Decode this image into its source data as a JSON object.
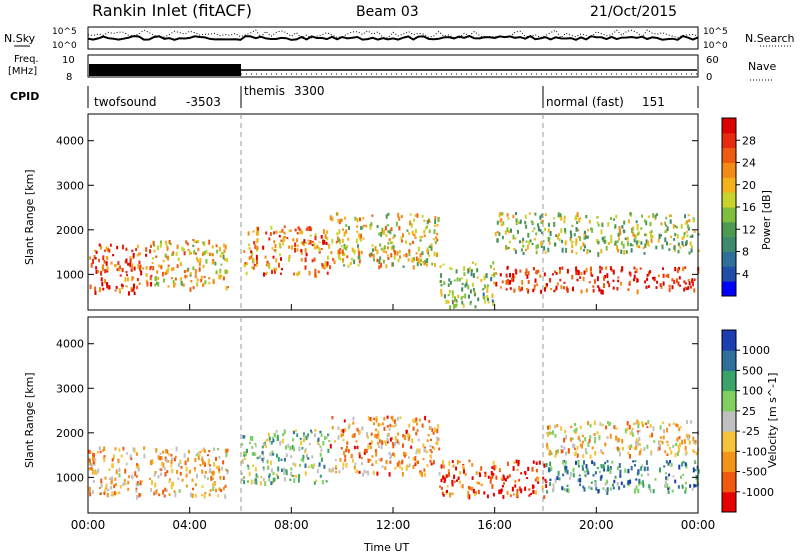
{
  "header": {
    "station": "Rankin Inlet (fitACF)",
    "beam": "Beam 03",
    "date": "21/Oct/2015"
  },
  "strips": {
    "nsky_label": "N.Sky",
    "nsky_ticks": [
      "10^5",
      "10^0"
    ],
    "nsearch_label": "N.Search",
    "freq_label": "Freq.",
    "freq_unit": "[MHz]",
    "freq_ticks": [
      "10",
      "8"
    ],
    "nave_label": "Nave",
    "nave_ticks": [
      "60",
      "0"
    ],
    "cpid_label": "CPID",
    "cpid_segments": [
      {
        "name": "twofsound",
        "id": "-3503",
        "start_hour": 0.0
      },
      {
        "name": "themis",
        "id": "3300",
        "start_hour": 6.0
      },
      {
        "name": "normal (fast)",
        "id": "151",
        "start_hour": 18.0
      }
    ]
  },
  "chart_data": [
    {
      "type": "heatmap",
      "name": "power",
      "xlabel": "",
      "ylabel": "Slant Range [km]",
      "xlim_hours": [
        0,
        24
      ],
      "ylim_km": [
        200,
        4600
      ],
      "yticks": [
        "1000",
        "2000",
        "3000",
        "4000"
      ],
      "colorbar_label": "Power [dB]",
      "colorbar_ticks": [
        "4",
        "8",
        "12",
        "16",
        "20",
        "24",
        "28"
      ],
      "colorbar_colors": [
        "#0000ff",
        "#1f4ea8",
        "#2f6f9a",
        "#3e8a6c",
        "#4e9a52",
        "#7fbf3f",
        "#c9d42b",
        "#f3b21a",
        "#f28a16",
        "#ef5a12",
        "#e82a10",
        "#dd0000"
      ],
      "regions": [
        {
          "x": [
            0.0,
            2.5
          ],
          "y": [
            600,
            1700
          ],
          "level": 0.82
        },
        {
          "x": [
            2.5,
            5.5
          ],
          "y": [
            700,
            1800
          ],
          "level": 0.62
        },
        {
          "x": [
            6.0,
            9.5
          ],
          "y": [
            1000,
            2100
          ],
          "level": 0.72
        },
        {
          "x": [
            9.5,
            13.8
          ],
          "y": [
            1200,
            2400
          ],
          "level": 0.58
        },
        {
          "x": [
            13.8,
            16.0
          ],
          "y": [
            300,
            1300
          ],
          "level": 0.45
        },
        {
          "x": [
            16.0,
            24.0
          ],
          "y": [
            650,
            1200
          ],
          "level": 0.9
        },
        {
          "x": [
            16.0,
            24.0
          ],
          "y": [
            1500,
            2400
          ],
          "level": 0.48
        }
      ]
    },
    {
      "type": "heatmap",
      "name": "velocity",
      "xlabel": "Time UT",
      "ylabel": "Slant Range [km]",
      "xlim_hours": [
        0,
        24
      ],
      "ylim_km": [
        200,
        4600
      ],
      "xticks": [
        "00:00",
        "04:00",
        "08:00",
        "12:00",
        "16:00",
        "20:00",
        "00:00"
      ],
      "yticks": [
        "1000",
        "2000",
        "3000",
        "4000"
      ],
      "colorbar_label": "Velocity [m s^-1]",
      "colorbar_ticks": [
        "-1000",
        "-500",
        "-100",
        "-25",
        "25",
        "100",
        "500",
        "1000"
      ],
      "colorbar_colors": [
        "#e80000",
        "#f05a10",
        "#f39318",
        "#f5c43a",
        "#c0c0c0",
        "#7fd060",
        "#3aa36a",
        "#2f6f9a",
        "#1b3fb0"
      ],
      "regions": [
        {
          "x": [
            0.0,
            5.5
          ],
          "y": [
            600,
            1700
          ],
          "level": 0.35
        },
        {
          "x": [
            6.0,
            9.5
          ],
          "y": [
            900,
            2100
          ],
          "level": 0.6
        },
        {
          "x": [
            9.5,
            13.8
          ],
          "y": [
            1100,
            2400
          ],
          "level": 0.3
        },
        {
          "x": [
            13.8,
            18.0
          ],
          "y": [
            600,
            1400
          ],
          "level": 0.15
        },
        {
          "x": [
            18.0,
            24.0
          ],
          "y": [
            700,
            1400
          ],
          "level": 0.75
        },
        {
          "x": [
            18.0,
            24.0
          ],
          "y": [
            1500,
            2300
          ],
          "level": 0.4
        }
      ]
    }
  ]
}
